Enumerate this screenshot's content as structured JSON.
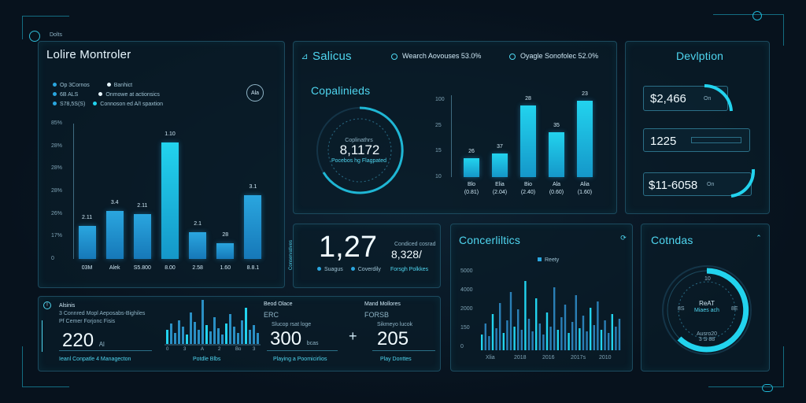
{
  "app": {
    "badge": "Dolts"
  },
  "left_panel": {
    "title": "Lolire Montroler",
    "logo_text": "Ala",
    "legend": [
      {
        "a": "Op 3Cornos",
        "b": "Banhict"
      },
      {
        "a": "6B ALS",
        "b": "Onmowe at actionsics"
      },
      {
        "a": "S78,5S(S)",
        "b": "Connoson ed A/I spaxtion"
      }
    ],
    "y_ticks": [
      "85%",
      "28%",
      "28%",
      "28%",
      "26%",
      "17%",
      "0"
    ],
    "categories": [
      "03M",
      "Alek",
      "S5.800",
      "8.00",
      "2.58",
      "1.60",
      "8.8.1"
    ]
  },
  "sales_panel": {
    "title": "Salicus",
    "stat1": "Wearch Aovouses 53.0%",
    "stat2": "Oyagle Sonofolec 52.0%",
    "ring_title": "Copalinieds",
    "ring_label": "Coplinathrs",
    "ring_value": "8,1172",
    "ring_sub": "Pocebos hg Flagpated",
    "y_ticks": [
      "100",
      "25",
      "15",
      "10"
    ],
    "categories": [
      "Blo",
      "Elia",
      "Bio",
      "Ala",
      "Alia"
    ],
    "cat_sub": [
      "(0.81)",
      "(2.04)",
      "(2.40)",
      "(0.60)",
      "(1.60)"
    ]
  },
  "deviation_panel": {
    "title": "Devlption",
    "items": [
      {
        "value": "$2,466",
        "tag": "On"
      },
      {
        "value": "1225",
        "tag": ""
      },
      {
        "value": "$11-6058",
        "tag": "On"
      }
    ]
  },
  "kpi_panel": {
    "side_label": "Conservatives",
    "value": "1,27",
    "value2": "8,328/",
    "sub2_top": "Condiced cosrad",
    "leg1": "Suagus",
    "leg2": "Coverdily",
    "leg3": "Forsgh Polkkes"
  },
  "bottom_left": {
    "title": "Alsinis",
    "line1": "3 Connred Mopl Aeposabs-Bighiles",
    "line2": "Pf Cemer Forjonc Fisis",
    "value": "220",
    "value_unit": "Al",
    "footer": "Ieanl Conpatle 4 Managecton",
    "spark_ticks": [
      "0",
      "3",
      "A",
      "2",
      "Bo",
      "3"
    ],
    "spark_footer": "Potdle Blbs"
  },
  "bottom_mid": {
    "title": "Beod Olace",
    "sub": "ERC",
    "small": "Slucop rsat loge",
    "value": "300",
    "value_unit": "bcas",
    "footer": "Playing a Poomicirlios"
  },
  "bottom_right": {
    "title": "Mand Mollores",
    "sub": "FORSB",
    "small": "Sikmeyo lucok",
    "value": "205",
    "plus": "+",
    "footer": "Play Donttes"
  },
  "concerlitics": {
    "title": "Concerliltics",
    "legend": "Reety",
    "y_ticks": [
      "5000",
      "4000",
      "2000",
      "150",
      "0"
    ],
    "x_ticks": [
      "Xlia",
      "2018",
      "2016",
      "2017s",
      "2010"
    ]
  },
  "cotndas": {
    "title": "Cotndas",
    "center1": "ReAT",
    "center2": "Miaes ach",
    "left_tick": "8S",
    "right_tick": "8E",
    "top_tick": "10",
    "bottom": "Ausro20\n3 S 88"
  },
  "chart_left": {
    "type": "bar",
    "categories": [
      "03M",
      "Alek",
      "S5.800",
      "8.00",
      "2.58",
      "1.60",
      "8.8.1"
    ],
    "values": [
      21,
      30,
      28,
      73,
      17,
      10,
      40
    ],
    "labels": [
      "2.11",
      "3.4",
      "2.11",
      "1.10",
      "2.1",
      "28",
      "3.1"
    ],
    "ylim": [
      0,
      85
    ]
  },
  "chart_sales": {
    "type": "bar",
    "categories": [
      "Blo",
      "Elia",
      "Bio",
      "Ala",
      "Alia"
    ],
    "values": [
      24,
      31,
      93,
      58,
      99
    ],
    "labels": [
      "26",
      "37",
      "28",
      "35",
      "23"
    ],
    "ylim": [
      0,
      100
    ]
  },
  "colors": {
    "accent": "#1fb6d4",
    "bar": "#2aa6df",
    "text": "#e8f7ff",
    "panel_border": "#1c4a5e"
  }
}
